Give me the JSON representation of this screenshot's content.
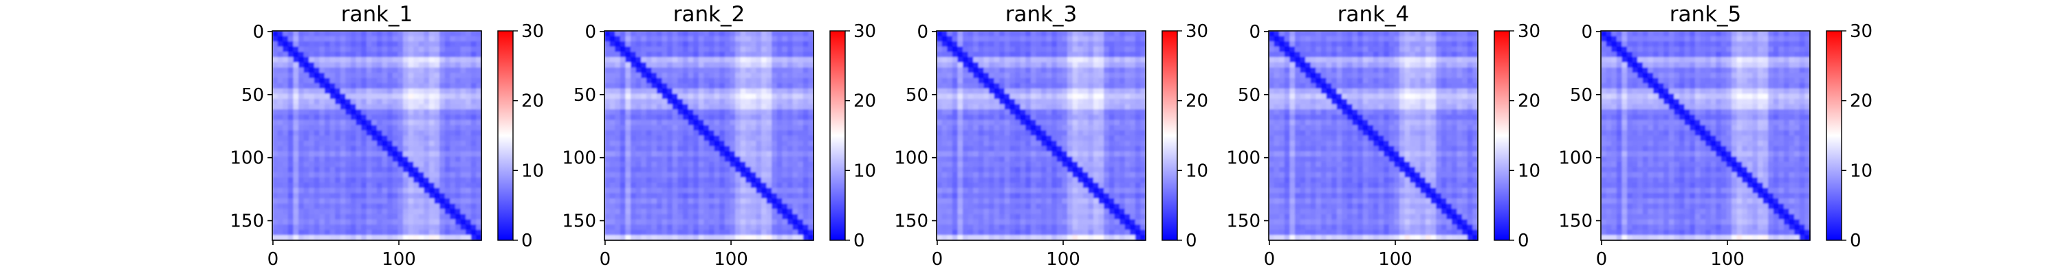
{
  "chart_data": [
    {
      "type": "heatmap",
      "title": "rank_1",
      "matrix_size": 166,
      "x_ticks": [
        0,
        100
      ],
      "y_ticks": [
        0,
        50,
        100,
        150
      ],
      "colorbar": {
        "min": 0,
        "max": 30,
        "ticks": [
          0,
          10,
          20,
          30
        ],
        "colormap": "bwr"
      },
      "grid": false
    },
    {
      "type": "heatmap",
      "title": "rank_2",
      "matrix_size": 166,
      "x_ticks": [
        0,
        100
      ],
      "y_ticks": [
        0,
        50,
        100,
        150
      ],
      "colorbar": {
        "min": 0,
        "max": 30,
        "ticks": [
          0,
          10,
          20,
          30
        ],
        "colormap": "bwr"
      },
      "grid": false
    },
    {
      "type": "heatmap",
      "title": "rank_3",
      "matrix_size": 166,
      "x_ticks": [
        0,
        100
      ],
      "y_ticks": [
        0,
        50,
        100,
        150
      ],
      "colorbar": {
        "min": 0,
        "max": 30,
        "ticks": [
          0,
          10,
          20,
          30
        ],
        "colormap": "bwr"
      },
      "grid": false
    },
    {
      "type": "heatmap",
      "title": "rank_4",
      "matrix_size": 166,
      "x_ticks": [
        0,
        100
      ],
      "y_ticks": [
        0,
        50,
        100,
        150
      ],
      "colorbar": {
        "min": 0,
        "max": 30,
        "ticks": [
          0,
          10,
          20,
          30
        ],
        "colormap": "bwr"
      },
      "grid": false
    },
    {
      "type": "heatmap",
      "title": "rank_5",
      "matrix_size": 166,
      "x_ticks": [
        0,
        100
      ],
      "y_ticks": [
        0,
        50,
        100,
        150
      ],
      "colorbar": {
        "min": 0,
        "max": 30,
        "ticks": [
          0,
          10,
          20,
          30
        ],
        "colormap": "bwr"
      },
      "grid": false
    }
  ]
}
